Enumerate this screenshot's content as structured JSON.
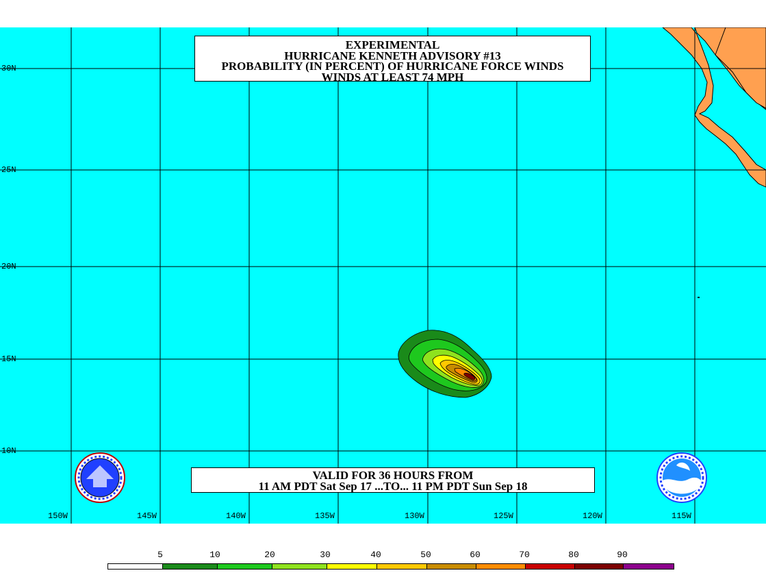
{
  "title_lines": [
    "EXPERIMENTAL",
    "HURRICANE KENNETH ADVISORY #13",
    "PROBABILITY (IN PERCENT) OF HURRICANE FORCE WINDS",
    "WINDS AT LEAST 74 MPH"
  ],
  "valid_lines": [
    "VALID FOR 36 HOURS FROM",
    "11 AM PDT Sat Sep 17 ...TO... 11 PM PDT Sun Sep 18"
  ],
  "latitude_labels": [
    "30N",
    "25N",
    "20N",
    "15N",
    "10N"
  ],
  "longitude_labels": [
    "150W",
    "145W",
    "140W",
    "135W",
    "130W",
    "125W",
    "120W",
    "115W"
  ],
  "legend": {
    "labels": [
      "5",
      "10",
      "20",
      "30",
      "40",
      "50",
      "60",
      "70",
      "80",
      "90"
    ],
    "colors": [
      "#ffffff",
      "#1a8a1a",
      "#1ec81e",
      "#8fe21e",
      "#ffff00",
      "#ffc800",
      "#c88c00",
      "#ff8c00",
      "#c80000",
      "#7c0000",
      "#8c008c"
    ]
  },
  "colors": {
    "ocean": "#00ffff",
    "land": "#ffa050",
    "grid": "#000000"
  },
  "icons": {
    "left_logo": "nws-logo",
    "right_logo": "noaa-logo"
  }
}
